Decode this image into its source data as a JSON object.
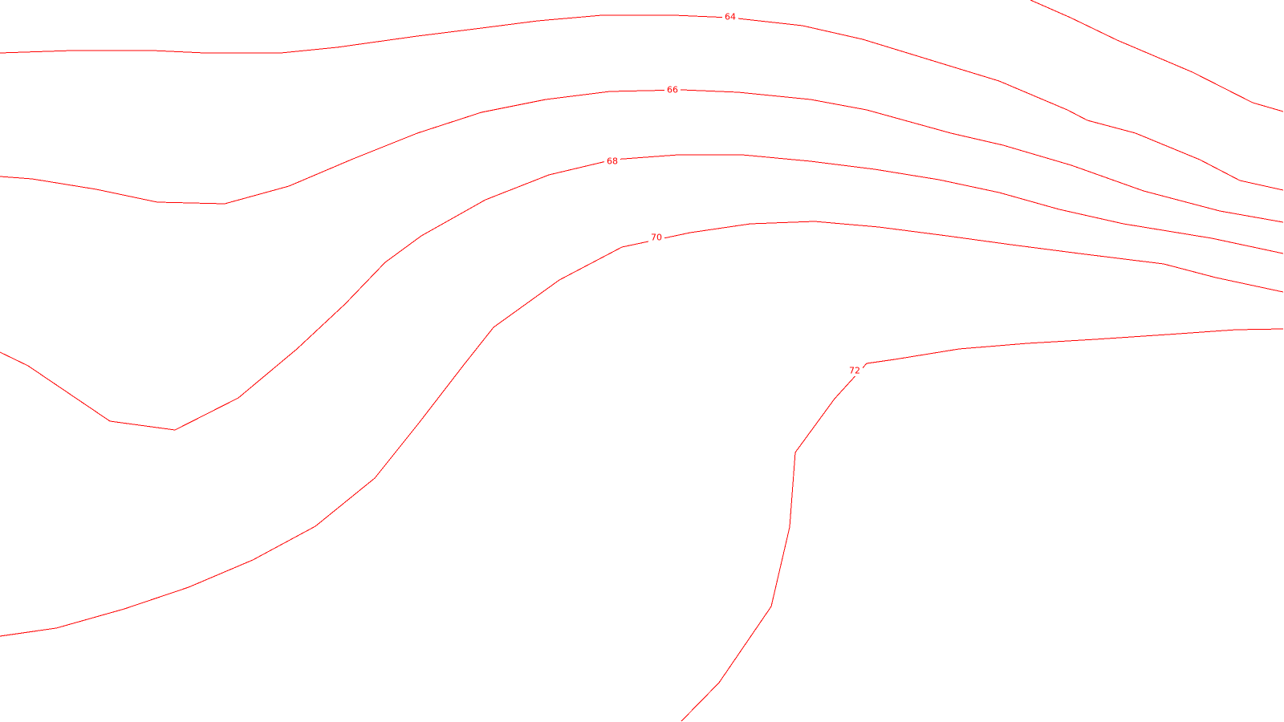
{
  "map": {
    "type": "contour-map",
    "line_color": "#ff0000",
    "background_color": "#ffffff",
    "contours": [
      {
        "level": 64,
        "label": "64"
      },
      {
        "level": 66,
        "label": "66"
      },
      {
        "level": 68,
        "label": "68"
      },
      {
        "level": 70,
        "label": "70"
      },
      {
        "level": 72,
        "label": "72"
      }
    ]
  }
}
